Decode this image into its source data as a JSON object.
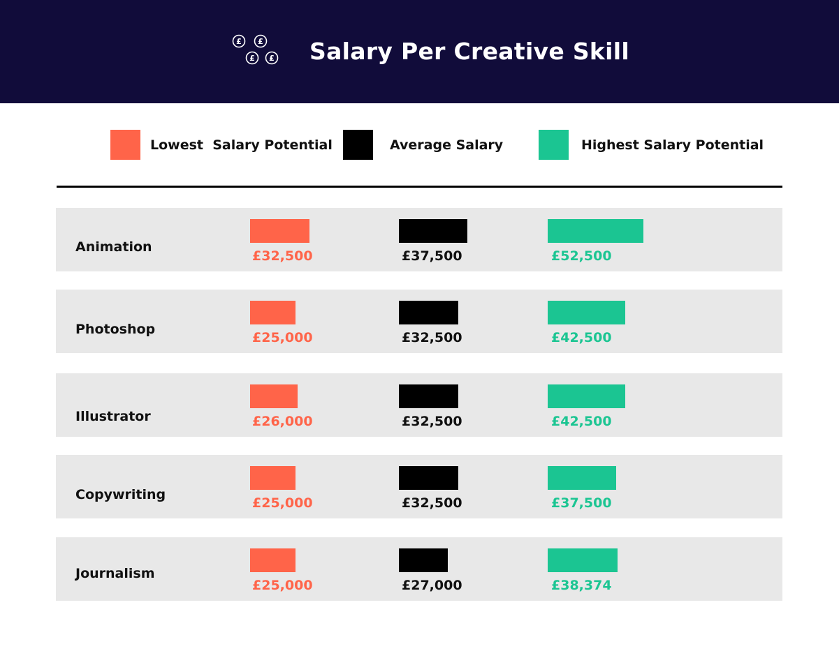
{
  "header": {
    "title": "Salary Per Creative Skill",
    "icon": "pound-coins-icon",
    "coin_glyph": "£",
    "background": "#110c3a"
  },
  "legend": [
    {
      "label": "Lowest  Salary Potential",
      "color": "#ff6449"
    },
    {
      "label": "Average Salary",
      "color": "#000000"
    },
    {
      "label": "Highest Salary Potential",
      "color": "#1bc592"
    }
  ],
  "chart_data": {
    "type": "bar",
    "title": "Salary Per Creative Skill",
    "categories": [
      "Animation",
      "Photoshop",
      "Illustrator",
      "Copywriting",
      "Journalism"
    ],
    "series": [
      {
        "name": "Lowest  Salary Potential",
        "color": "#ff6449",
        "values": [
          32500,
          25000,
          26000,
          25000,
          25000
        ],
        "labels": [
          "£32,500",
          "£25,000",
          "£26,000",
          "£25,000",
          "£25,000"
        ]
      },
      {
        "name": "Average Salary",
        "color": "#000000",
        "values": [
          37500,
          32500,
          32500,
          32500,
          27000
        ],
        "labels": [
          "£37,500",
          "£32,500",
          "£32,500",
          "£32,500",
          "£27,000"
        ]
      },
      {
        "name": "Highest Salary Potential",
        "color": "#1bc592",
        "values": [
          52500,
          42500,
          42500,
          37500,
          38374
        ],
        "labels": [
          "£52,500",
          "£42,500",
          "£42,500",
          "£37,500",
          "£38,374"
        ]
      }
    ]
  }
}
